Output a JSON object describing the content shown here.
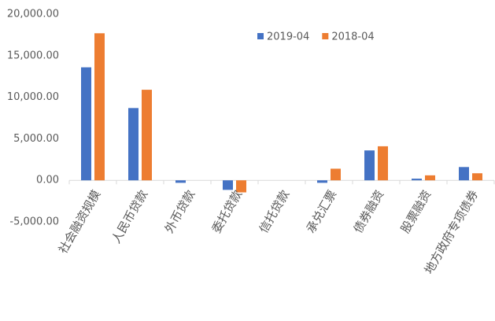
{
  "chart_data": {
    "type": "bar",
    "categories": [
      "社会融资规模",
      "人民币贷款",
      "外币贷款",
      "委托贷款",
      "信托贷款",
      "承兑汇票",
      "债券融资",
      "股票融资",
      "地方政府专项债券"
    ],
    "series": [
      {
        "name": "2019-04",
        "color": "#4472c4",
        "values": [
          13600,
          8700,
          -300,
          -1150,
          0,
          -300,
          3600,
          200,
          1600
        ]
      },
      {
        "name": "2018-04",
        "color": "#ed7d31",
        "values": [
          17700,
          10900,
          0,
          -1450,
          0,
          1400,
          4100,
          600,
          850
        ]
      }
    ],
    "ylim": [
      -5000,
      20000
    ],
    "yticks": [
      {
        "value": -5000,
        "label": "-5,000.00"
      },
      {
        "value": 0,
        "label": "0.00"
      },
      {
        "value": 5000,
        "label": "5,000.00"
      },
      {
        "value": 10000,
        "label": "10,000.00"
      },
      {
        "value": 15000,
        "label": "15,000.00"
      },
      {
        "value": 20000,
        "label": "20,000.00"
      }
    ],
    "grid": false,
    "legend": "top"
  }
}
